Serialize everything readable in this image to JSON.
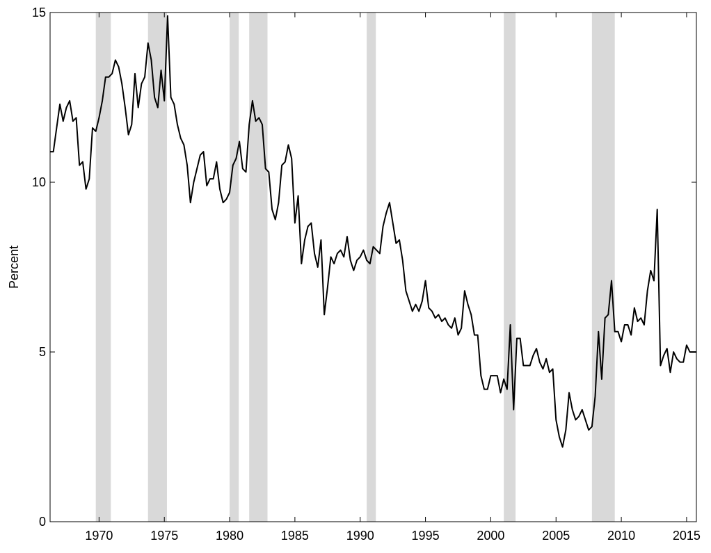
{
  "chart_data": {
    "type": "line",
    "title": "",
    "xlabel": "",
    "ylabel": "Percent",
    "xlim": [
      1966.25,
      2015.75
    ],
    "ylim": [
      0,
      15
    ],
    "x_ticks": [
      1970,
      1975,
      1980,
      1985,
      1990,
      1995,
      2000,
      2005,
      2010,
      2015
    ],
    "y_ticks": [
      0,
      5,
      10,
      15
    ],
    "x_tick_labels": [
      "1970",
      "1975",
      "1980",
      "1985",
      "1990",
      "1995",
      "2000",
      "2005",
      "2010",
      "2015"
    ],
    "y_tick_labels": [
      "0",
      "5",
      "10",
      "15"
    ],
    "grid": false,
    "legend": "none",
    "line_color": "#000000",
    "shading_color": "#d9d9d9",
    "recession_shading": [
      [
        1969.75,
        1970.9
      ],
      [
        1973.75,
        1975.2
      ],
      [
        1980.0,
        1980.7
      ],
      [
        1981.5,
        1982.9
      ],
      [
        1990.5,
        1991.2
      ],
      [
        2001.0,
        2001.9
      ],
      [
        2007.75,
        2009.5
      ]
    ],
    "series": [
      {
        "points": [
          [
            1966.25,
            10.9
          ],
          [
            1966.5,
            10.9
          ],
          [
            1966.75,
            11.6
          ],
          [
            1967.0,
            12.3
          ],
          [
            1967.25,
            11.8
          ],
          [
            1967.5,
            12.2
          ],
          [
            1967.75,
            12.4
          ],
          [
            1968.0,
            11.8
          ],
          [
            1968.25,
            11.9
          ],
          [
            1968.5,
            10.5
          ],
          [
            1968.75,
            10.6
          ],
          [
            1969.0,
            9.8
          ],
          [
            1969.25,
            10.1
          ],
          [
            1969.5,
            11.6
          ],
          [
            1969.75,
            11.5
          ],
          [
            1970.0,
            11.9
          ],
          [
            1970.25,
            12.4
          ],
          [
            1970.5,
            13.1
          ],
          [
            1970.75,
            13.1
          ],
          [
            1971.0,
            13.2
          ],
          [
            1971.25,
            13.6
          ],
          [
            1971.5,
            13.4
          ],
          [
            1971.75,
            12.9
          ],
          [
            1972.0,
            12.2
          ],
          [
            1972.25,
            11.4
          ],
          [
            1972.5,
            11.7
          ],
          [
            1972.75,
            13.2
          ],
          [
            1973.0,
            12.2
          ],
          [
            1973.25,
            12.9
          ],
          [
            1973.5,
            13.1
          ],
          [
            1973.75,
            14.1
          ],
          [
            1974.0,
            13.6
          ],
          [
            1974.25,
            12.5
          ],
          [
            1974.5,
            12.2
          ],
          [
            1974.75,
            13.3
          ],
          [
            1975.0,
            12.4
          ],
          [
            1975.25,
            14.9
          ],
          [
            1975.5,
            12.5
          ],
          [
            1975.75,
            12.3
          ],
          [
            1976.0,
            11.7
          ],
          [
            1976.25,
            11.3
          ],
          [
            1976.5,
            11.1
          ],
          [
            1976.75,
            10.5
          ],
          [
            1977.0,
            9.4
          ],
          [
            1977.25,
            10.0
          ],
          [
            1977.5,
            10.4
          ],
          [
            1977.75,
            10.8
          ],
          [
            1978.0,
            10.9
          ],
          [
            1978.25,
            9.9
          ],
          [
            1978.5,
            10.1
          ],
          [
            1978.75,
            10.1
          ],
          [
            1979.0,
            10.6
          ],
          [
            1979.25,
            9.8
          ],
          [
            1979.5,
            9.4
          ],
          [
            1979.75,
            9.5
          ],
          [
            1980.0,
            9.7
          ],
          [
            1980.25,
            10.5
          ],
          [
            1980.5,
            10.7
          ],
          [
            1980.75,
            11.2
          ],
          [
            1981.0,
            10.4
          ],
          [
            1981.25,
            10.3
          ],
          [
            1981.5,
            11.7
          ],
          [
            1981.75,
            12.4
          ],
          [
            1982.0,
            11.8
          ],
          [
            1982.25,
            11.9
          ],
          [
            1982.5,
            11.7
          ],
          [
            1982.75,
            10.4
          ],
          [
            1983.0,
            10.3
          ],
          [
            1983.25,
            9.2
          ],
          [
            1983.5,
            8.9
          ],
          [
            1983.75,
            9.4
          ],
          [
            1984.0,
            10.5
          ],
          [
            1984.25,
            10.6
          ],
          [
            1984.5,
            11.1
          ],
          [
            1984.75,
            10.7
          ],
          [
            1985.0,
            8.8
          ],
          [
            1985.25,
            9.6
          ],
          [
            1985.5,
            7.6
          ],
          [
            1985.75,
            8.3
          ],
          [
            1986.0,
            8.7
          ],
          [
            1986.25,
            8.8
          ],
          [
            1986.5,
            7.9
          ],
          [
            1986.75,
            7.5
          ],
          [
            1987.0,
            8.3
          ],
          [
            1987.25,
            6.1
          ],
          [
            1987.5,
            6.9
          ],
          [
            1987.75,
            7.8
          ],
          [
            1988.0,
            7.6
          ],
          [
            1988.25,
            7.9
          ],
          [
            1988.5,
            8.0
          ],
          [
            1988.75,
            7.8
          ],
          [
            1989.0,
            8.4
          ],
          [
            1989.25,
            7.7
          ],
          [
            1989.5,
            7.4
          ],
          [
            1989.75,
            7.7
          ],
          [
            1990.0,
            7.8
          ],
          [
            1990.25,
            8.0
          ],
          [
            1990.5,
            7.7
          ],
          [
            1990.75,
            7.6
          ],
          [
            1991.0,
            8.1
          ],
          [
            1991.25,
            8.0
          ],
          [
            1991.5,
            7.9
          ],
          [
            1991.75,
            8.7
          ],
          [
            1992.0,
            9.1
          ],
          [
            1992.25,
            9.4
          ],
          [
            1992.5,
            8.8
          ],
          [
            1992.75,
            8.2
          ],
          [
            1993.0,
            8.3
          ],
          [
            1993.25,
            7.7
          ],
          [
            1993.5,
            6.8
          ],
          [
            1993.75,
            6.5
          ],
          [
            1994.0,
            6.2
          ],
          [
            1994.25,
            6.4
          ],
          [
            1994.5,
            6.2
          ],
          [
            1994.75,
            6.5
          ],
          [
            1995.0,
            7.1
          ],
          [
            1995.25,
            6.3
          ],
          [
            1995.5,
            6.2
          ],
          [
            1995.75,
            6.0
          ],
          [
            1996.0,
            6.1
          ],
          [
            1996.25,
            5.9
          ],
          [
            1996.5,
            6.0
          ],
          [
            1996.75,
            5.8
          ],
          [
            1997.0,
            5.7
          ],
          [
            1997.25,
            6.0
          ],
          [
            1997.5,
            5.5
          ],
          [
            1997.75,
            5.7
          ],
          [
            1998.0,
            6.8
          ],
          [
            1998.25,
            6.4
          ],
          [
            1998.5,
            6.1
          ],
          [
            1998.75,
            5.5
          ],
          [
            1999.0,
            5.5
          ],
          [
            1999.25,
            4.3
          ],
          [
            1999.5,
            3.9
          ],
          [
            1999.75,
            3.9
          ],
          [
            2000.0,
            4.3
          ],
          [
            2000.25,
            4.3
          ],
          [
            2000.5,
            4.3
          ],
          [
            2000.75,
            3.8
          ],
          [
            2001.0,
            4.2
          ],
          [
            2001.25,
            3.9
          ],
          [
            2001.5,
            5.8
          ],
          [
            2001.75,
            3.3
          ],
          [
            2002.0,
            5.4
          ],
          [
            2002.25,
            5.4
          ],
          [
            2002.5,
            4.6
          ],
          [
            2002.75,
            4.6
          ],
          [
            2003.0,
            4.6
          ],
          [
            2003.25,
            4.9
          ],
          [
            2003.5,
            5.1
          ],
          [
            2003.75,
            4.7
          ],
          [
            2004.0,
            4.5
          ],
          [
            2004.25,
            4.8
          ],
          [
            2004.5,
            4.4
          ],
          [
            2004.75,
            4.5
          ],
          [
            2005.0,
            3.0
          ],
          [
            2005.25,
            2.5
          ],
          [
            2005.5,
            2.2
          ],
          [
            2005.75,
            2.7
          ],
          [
            2006.0,
            3.8
          ],
          [
            2006.25,
            3.3
          ],
          [
            2006.5,
            3.0
          ],
          [
            2006.75,
            3.1
          ],
          [
            2007.0,
            3.3
          ],
          [
            2007.25,
            3.0
          ],
          [
            2007.5,
            2.7
          ],
          [
            2007.75,
            2.8
          ],
          [
            2008.0,
            3.7
          ],
          [
            2008.25,
            5.6
          ],
          [
            2008.5,
            4.2
          ],
          [
            2008.75,
            6.0
          ],
          [
            2009.0,
            6.1
          ],
          [
            2009.25,
            7.1
          ],
          [
            2009.5,
            5.6
          ],
          [
            2009.75,
            5.6
          ],
          [
            2010.0,
            5.3
          ],
          [
            2010.25,
            5.8
          ],
          [
            2010.5,
            5.8
          ],
          [
            2010.75,
            5.5
          ],
          [
            2011.0,
            6.3
          ],
          [
            2011.25,
            5.9
          ],
          [
            2011.5,
            6.0
          ],
          [
            2011.75,
            5.8
          ],
          [
            2012.0,
            6.8
          ],
          [
            2012.25,
            7.4
          ],
          [
            2012.5,
            7.1
          ],
          [
            2012.75,
            9.2
          ],
          [
            2013.0,
            4.6
          ],
          [
            2013.25,
            4.9
          ],
          [
            2013.5,
            5.1
          ],
          [
            2013.75,
            4.4
          ],
          [
            2014.0,
            5.0
          ],
          [
            2014.25,
            4.8
          ],
          [
            2014.5,
            4.7
          ],
          [
            2014.75,
            4.7
          ],
          [
            2015.0,
            5.2
          ],
          [
            2015.25,
            5.0
          ],
          [
            2015.5,
            5.0
          ],
          [
            2015.75,
            5.0
          ]
        ]
      }
    ]
  }
}
